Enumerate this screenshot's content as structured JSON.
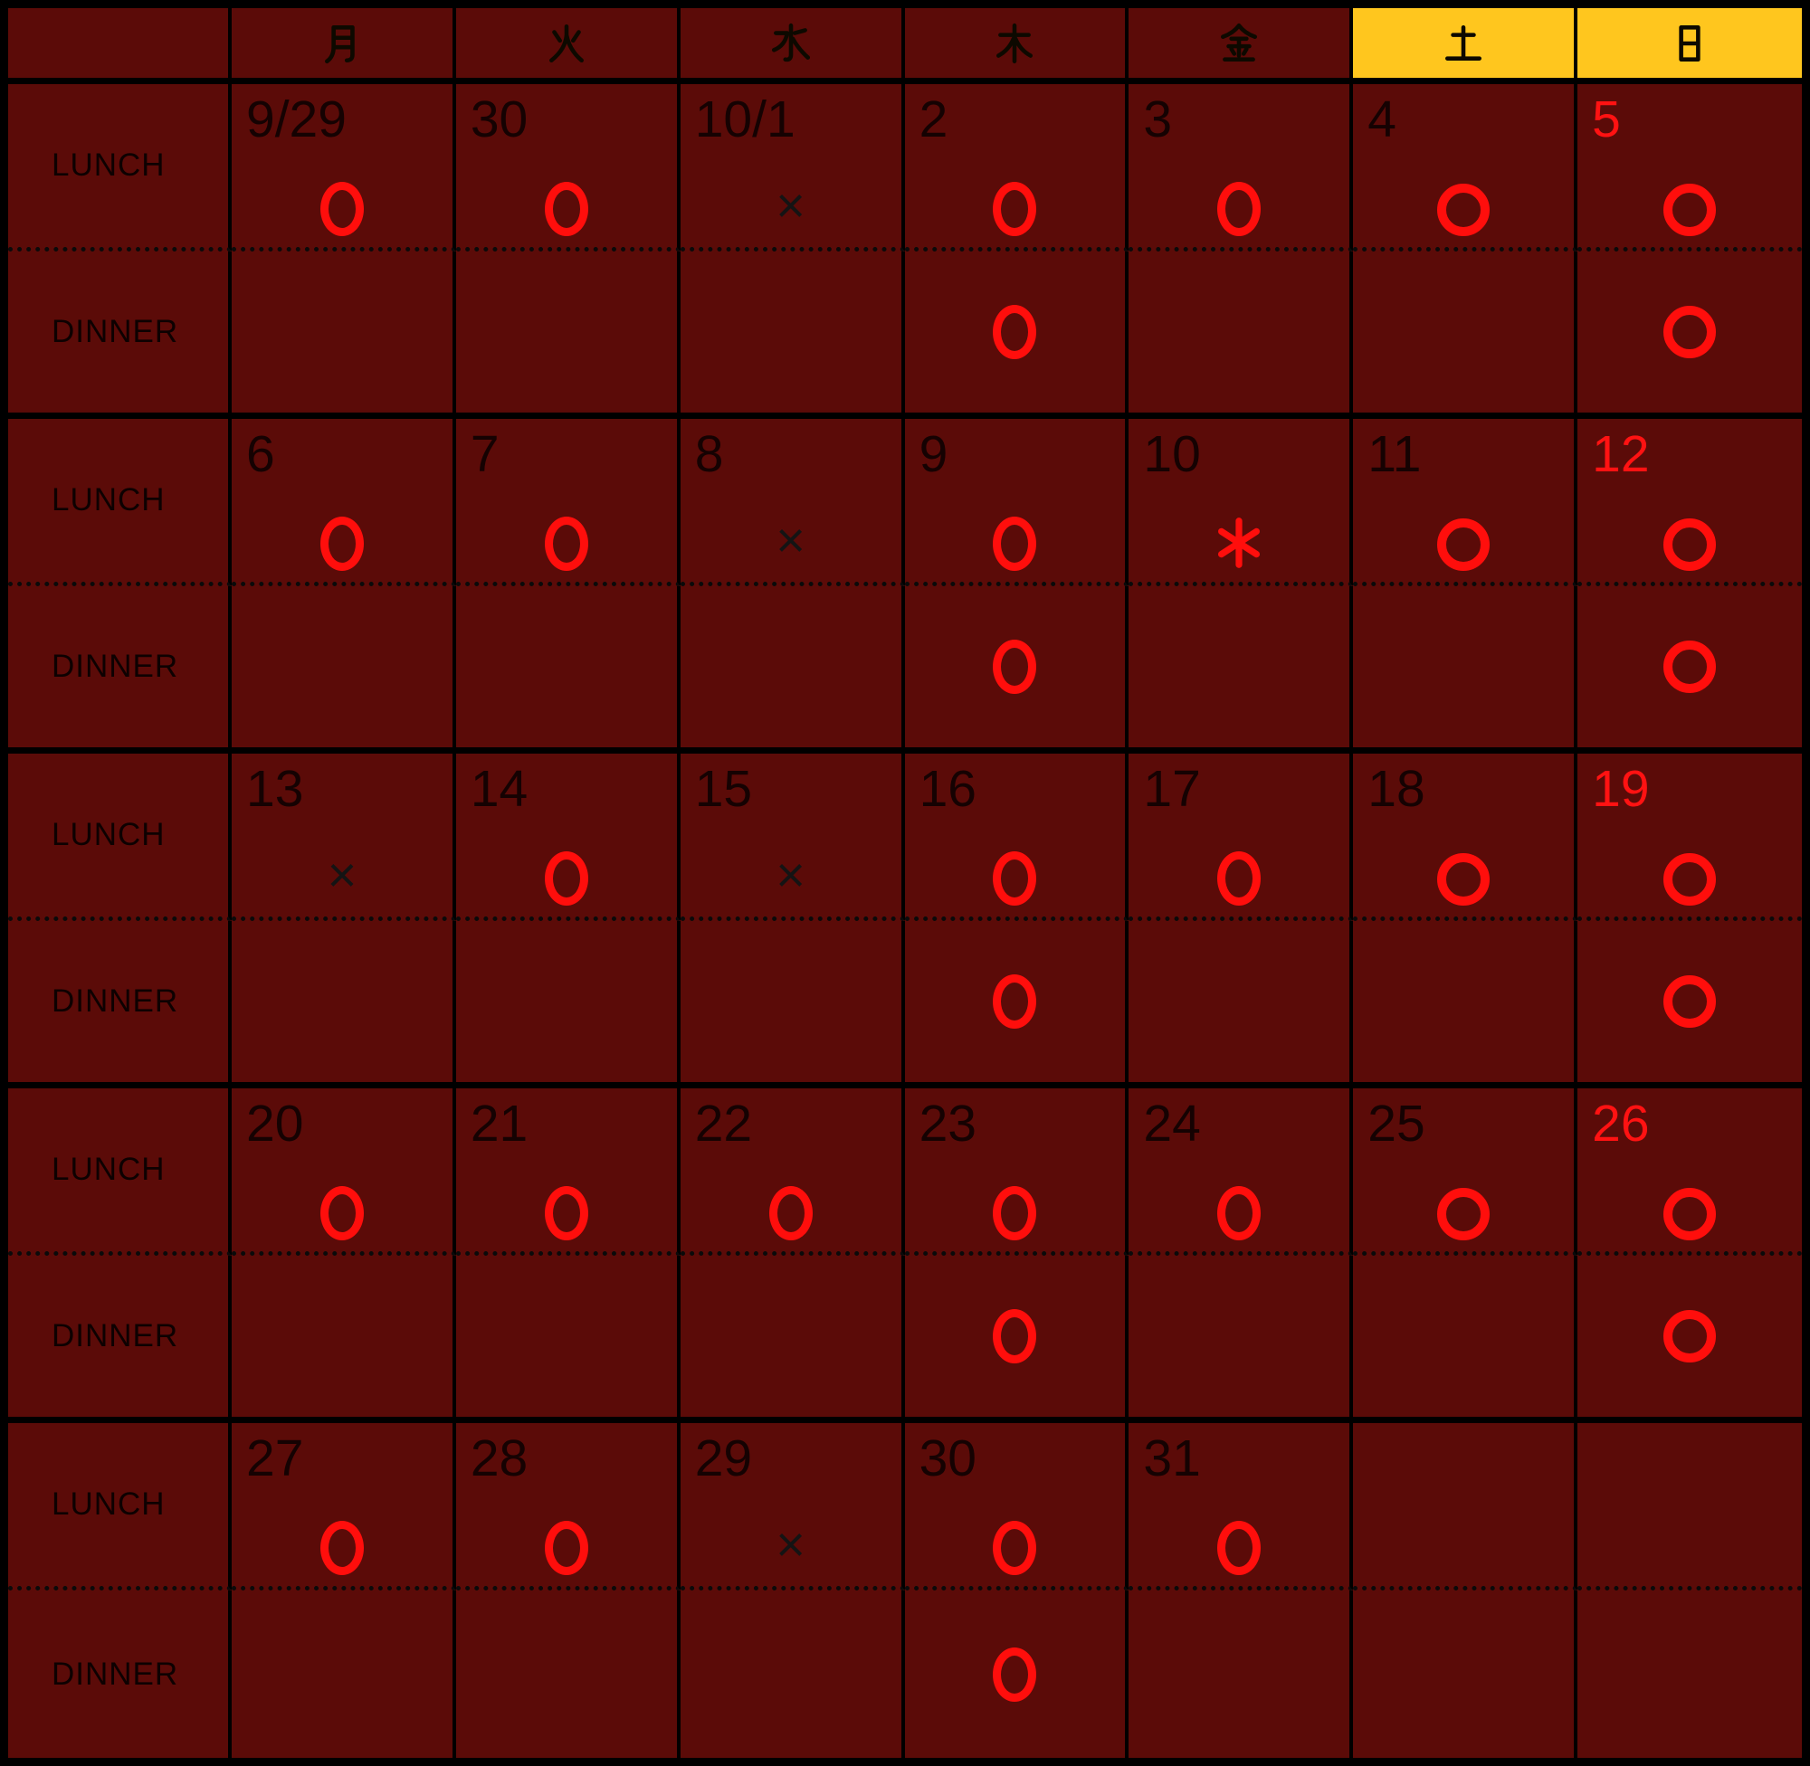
{
  "colors": {
    "background": "#5B0B08",
    "grid": "#000000",
    "weekend_header_bg": "#FFC61E",
    "mark_red": "#FF0E0C",
    "date_black": "#150202",
    "sunday_date_red": "#FF1212"
  },
  "weekday_header": [
    {
      "key": "mon",
      "label": "月",
      "weekend": false
    },
    {
      "key": "tue",
      "label": "火",
      "weekend": false
    },
    {
      "key": "wed",
      "label": "水",
      "weekend": false
    },
    {
      "key": "thu",
      "label": "木",
      "weekend": false
    },
    {
      "key": "fri",
      "label": "金",
      "weekend": false
    },
    {
      "key": "sat",
      "label": "土",
      "weekend": true
    },
    {
      "key": "sun",
      "label": "日",
      "weekend": true
    }
  ],
  "row_labels": {
    "lunch": "LUNCH",
    "dinner": "DINNER"
  },
  "marks": {
    "open": "○",
    "closed": "×",
    "special": "*"
  },
  "weeks": [
    {
      "days": [
        {
          "date": "9/29",
          "sunday": false,
          "lunch": "open",
          "dinner": null
        },
        {
          "date": "30",
          "sunday": false,
          "lunch": "open",
          "dinner": null
        },
        {
          "date": "10/1",
          "sunday": false,
          "lunch": "closed",
          "dinner": null
        },
        {
          "date": "2",
          "sunday": false,
          "lunch": "open",
          "dinner": "open"
        },
        {
          "date": "3",
          "sunday": false,
          "lunch": "open",
          "dinner": null
        },
        {
          "date": "4",
          "sunday": false,
          "lunch": "open",
          "dinner": null
        },
        {
          "date": "5",
          "sunday": true,
          "lunch": "open",
          "dinner": "open"
        }
      ]
    },
    {
      "days": [
        {
          "date": "6",
          "sunday": false,
          "lunch": "open",
          "dinner": null
        },
        {
          "date": "7",
          "sunday": false,
          "lunch": "open",
          "dinner": null
        },
        {
          "date": "8",
          "sunday": false,
          "lunch": "closed",
          "dinner": null
        },
        {
          "date": "9",
          "sunday": false,
          "lunch": "open",
          "dinner": "open"
        },
        {
          "date": "10",
          "sunday": false,
          "lunch": "special",
          "dinner": null
        },
        {
          "date": "11",
          "sunday": false,
          "lunch": "open",
          "dinner": null
        },
        {
          "date": "12",
          "sunday": true,
          "lunch": "open",
          "dinner": "open"
        }
      ]
    },
    {
      "days": [
        {
          "date": "13",
          "sunday": false,
          "lunch": "closed",
          "dinner": null
        },
        {
          "date": "14",
          "sunday": false,
          "lunch": "open",
          "dinner": null
        },
        {
          "date": "15",
          "sunday": false,
          "lunch": "closed",
          "dinner": null
        },
        {
          "date": "16",
          "sunday": false,
          "lunch": "open",
          "dinner": "open"
        },
        {
          "date": "17",
          "sunday": false,
          "lunch": "open",
          "dinner": null
        },
        {
          "date": "18",
          "sunday": false,
          "lunch": "open",
          "dinner": null
        },
        {
          "date": "19",
          "sunday": true,
          "lunch": "open",
          "dinner": "open"
        }
      ]
    },
    {
      "days": [
        {
          "date": "20",
          "sunday": false,
          "lunch": "open",
          "dinner": null
        },
        {
          "date": "21",
          "sunday": false,
          "lunch": "open",
          "dinner": null
        },
        {
          "date": "22",
          "sunday": false,
          "lunch": "open",
          "dinner": null
        },
        {
          "date": "23",
          "sunday": false,
          "lunch": "open",
          "dinner": "open"
        },
        {
          "date": "24",
          "sunday": false,
          "lunch": "open",
          "dinner": null
        },
        {
          "date": "25",
          "sunday": false,
          "lunch": "open",
          "dinner": null
        },
        {
          "date": "26",
          "sunday": true,
          "lunch": "open",
          "dinner": "open"
        }
      ]
    },
    {
      "days": [
        {
          "date": "27",
          "sunday": false,
          "lunch": "open",
          "dinner": null
        },
        {
          "date": "28",
          "sunday": false,
          "lunch": "open",
          "dinner": null
        },
        {
          "date": "29",
          "sunday": false,
          "lunch": "closed",
          "dinner": null
        },
        {
          "date": "30",
          "sunday": false,
          "lunch": "open",
          "dinner": "open"
        },
        {
          "date": "31",
          "sunday": false,
          "lunch": "open",
          "dinner": null
        },
        {
          "date": null,
          "sunday": false,
          "lunch": null,
          "dinner": null
        },
        {
          "date": null,
          "sunday": true,
          "lunch": null,
          "dinner": null
        }
      ]
    }
  ]
}
